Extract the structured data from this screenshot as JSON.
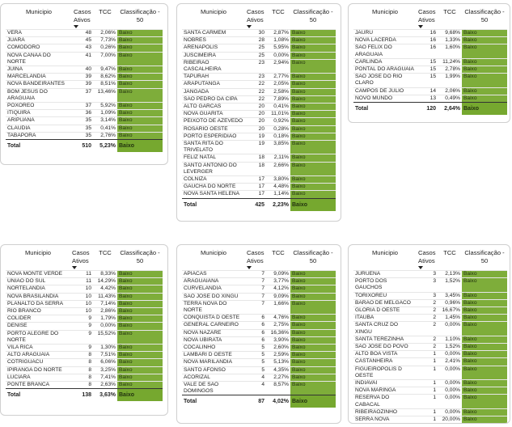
{
  "headers": {
    "municipio": "Municipio",
    "casos": "Casos Ativos",
    "tcc": "TCC",
    "classificacao": "Classificação - 50"
  },
  "colors": {
    "baixo": "#7ead3a",
    "total_baixo": "#76a82f",
    "header_rule": "#333333"
  },
  "tables": [
    {
      "rows": [
        {
          "m": "VERA",
          "c": "48",
          "t": "2,06%",
          "k": "Baixo"
        },
        {
          "m": "JUARA",
          "c": "45",
          "t": "7,73%",
          "k": "Baixo"
        },
        {
          "m": "COMODORO",
          "c": "43",
          "t": "0,26%",
          "k": "Baixo"
        },
        {
          "m": "NOVA CANAA DO NORTE",
          "c": "41",
          "t": "7,00%",
          "k": "Baixo"
        },
        {
          "m": "JUINA",
          "c": "40",
          "t": "9,47%",
          "k": "Baixo"
        },
        {
          "m": "MARCELANDIA",
          "c": "39",
          "t": "8,62%",
          "k": "Baixo"
        },
        {
          "m": "NOVA BANDEIRANTES",
          "c": "39",
          "t": "8,51%",
          "k": "Baixo"
        },
        {
          "m": "BOM JESUS DO ARAGUAIA",
          "c": "37",
          "t": "13,46%",
          "k": "Baixo"
        },
        {
          "m": "POXOREO",
          "c": "37",
          "t": "5,92%",
          "k": "Baixo"
        },
        {
          "m": "ITIQUIRA",
          "c": "36",
          "t": "1,09%",
          "k": "Baixo"
        },
        {
          "m": "ARIPUANA",
          "c": "35",
          "t": "3,14%",
          "k": "Baixo"
        },
        {
          "m": "CLAUDIA",
          "c": "35",
          "t": "0,41%",
          "k": "Baixo"
        },
        {
          "m": "TABAPORA",
          "c": "35",
          "t": "2,76%",
          "k": "Baixo"
        }
      ],
      "total": {
        "label": "Total",
        "c": "510",
        "t": "5,23%",
        "k": "Baixo"
      }
    },
    {
      "rows": [
        {
          "m": "SANTA CARMEM",
          "c": "30",
          "t": "2,87%",
          "k": "Baixo"
        },
        {
          "m": "NOBRES",
          "c": "28",
          "t": "1,08%",
          "k": "Baixo"
        },
        {
          "m": "ARENAPOLIS",
          "c": "25",
          "t": "5,95%",
          "k": "Baixo"
        },
        {
          "m": "JUSCIMEIRA",
          "c": "25",
          "t": "0,00%",
          "k": "Baixo"
        },
        {
          "m": "RIBEIRAO CASCALHEIRA",
          "c": "23",
          "t": "2,94%",
          "k": "Baixo"
        },
        {
          "m": "TAPURAH",
          "c": "23",
          "t": "2,77%",
          "k": "Baixo"
        },
        {
          "m": "ARAPUTANGA",
          "c": "22",
          "t": "2,05%",
          "k": "Baixo"
        },
        {
          "m": "JANGADA",
          "c": "22",
          "t": "2,58%",
          "k": "Baixo"
        },
        {
          "m": "SAO PEDRO DA CIPA",
          "c": "22",
          "t": "7,89%",
          "k": "Baixo"
        },
        {
          "m": "ALTO GARCAS",
          "c": "20",
          "t": "0,41%",
          "k": "Baixo"
        },
        {
          "m": "NOVA GUARITA",
          "c": "20",
          "t": "11,01%",
          "k": "Baixo"
        },
        {
          "m": "PEIXOTO DE AZEVEDO",
          "c": "20",
          "t": "0,92%",
          "k": "Baixo"
        },
        {
          "m": "ROSARIO OESTE",
          "c": "20",
          "t": "0,28%",
          "k": "Baixo"
        },
        {
          "m": "PORTO ESPERIDIAO",
          "c": "19",
          "t": "0,18%",
          "k": "Baixo"
        },
        {
          "m": "SANTA RITA DO TRIVELATO",
          "c": "19",
          "t": "3,85%",
          "k": "Baixo"
        },
        {
          "m": "FELIZ NATAL",
          "c": "18",
          "t": "2,11%",
          "k": "Baixo"
        },
        {
          "m": "SANTO ANTONIO DO LEVERGER",
          "c": "18",
          "t": "2,66%",
          "k": "Baixo"
        },
        {
          "m": "COLNIZA",
          "c": "17",
          "t": "3,80%",
          "k": "Baixo"
        },
        {
          "m": "GAUCHA DO NORTE",
          "c": "17",
          "t": "4,48%",
          "k": "Baixo"
        },
        {
          "m": "NOVA SANTA HELENA",
          "c": "17",
          "t": "1,14%",
          "k": "Baixo"
        }
      ],
      "total": {
        "label": "Total",
        "c": "425",
        "t": "2,23%",
        "k": "Baixo"
      }
    },
    {
      "rows": [
        {
          "m": "JAURU",
          "c": "16",
          "t": "9,68%",
          "k": "Baixo"
        },
        {
          "m": "NOVA LACERDA",
          "c": "16",
          "t": "1,33%",
          "k": "Baixo"
        },
        {
          "m": "SAO FELIX DO ARAGUAIA",
          "c": "16",
          "t": "1,60%",
          "k": "Baixo"
        },
        {
          "m": "CARLINDA",
          "c": "15",
          "t": "11,24%",
          "k": "Baixo"
        },
        {
          "m": "PONTAL DO ARAGUAIA",
          "c": "15",
          "t": "2,78%",
          "k": "Baixo"
        },
        {
          "m": "SAO JOSE DO RIO CLARO",
          "c": "15",
          "t": "1,99%",
          "k": "Baixo"
        },
        {
          "m": "CAMPOS DE JULIO",
          "c": "14",
          "t": "2,06%",
          "k": "Baixo"
        },
        {
          "m": "NOVO MUNDO",
          "c": "13",
          "t": "0,49%",
          "k": "Baixo"
        }
      ],
      "total": {
        "label": "Total",
        "c": "120",
        "t": "2,64%",
        "k": "Baixo"
      }
    },
    {
      "rows": [
        {
          "m": "NOVA MONTE VERDE",
          "c": "11",
          "t": "8,33%",
          "k": "Baixo"
        },
        {
          "m": "UNIAO DO SUL",
          "c": "11",
          "t": "14,29%",
          "k": "Baixo"
        },
        {
          "m": "NORTELANDIA",
          "c": "10",
          "t": "4,42%",
          "k": "Baixo"
        },
        {
          "m": "NOVA BRASILANDIA",
          "c": "10",
          "t": "11,43%",
          "k": "Baixo"
        },
        {
          "m": "PLANALTO DA SERRA",
          "c": "10",
          "t": "7,14%",
          "k": "Baixo"
        },
        {
          "m": "RIO BRANCO",
          "c": "10",
          "t": "2,86%",
          "k": "Baixo"
        },
        {
          "m": "COLIDER",
          "c": "9",
          "t": "1,79%",
          "k": "Baixo"
        },
        {
          "m": "DENISE",
          "c": "9",
          "t": "0,00%",
          "k": "Baixo"
        },
        {
          "m": "PORTO ALEGRE DO NORTE",
          "c": "9",
          "t": "15,52%",
          "k": "Baixo"
        },
        {
          "m": "VILA RICA",
          "c": "9",
          "t": "1,30%",
          "k": "Baixo"
        },
        {
          "m": "ALTO ARAGUAIA",
          "c": "8",
          "t": "7,51%",
          "k": "Baixo"
        },
        {
          "m": "COTRIGUACU",
          "c": "8",
          "t": "6,06%",
          "k": "Baixo"
        },
        {
          "m": "IPIRANGA DO NORTE",
          "c": "8",
          "t": "3,25%",
          "k": "Baixo"
        },
        {
          "m": "LUCIARA",
          "c": "8",
          "t": "7,41%",
          "k": "Baixo"
        },
        {
          "m": "PONTE BRANCA",
          "c": "8",
          "t": "2,63%",
          "k": "Baixo"
        }
      ],
      "total": {
        "label": "Total",
        "c": "138",
        "t": "3,63%",
        "k": "Baixo"
      }
    },
    {
      "rows": [
        {
          "m": "APIACAS",
          "c": "7",
          "t": "9,09%",
          "k": "Baixo"
        },
        {
          "m": "ARAGUAIANA",
          "c": "7",
          "t": "3,77%",
          "k": "Baixo"
        },
        {
          "m": "CURVELANDIA",
          "c": "7",
          "t": "4,12%",
          "k": "Baixo"
        },
        {
          "m": "SAO JOSE DO XINGU",
          "c": "7",
          "t": "9,09%",
          "k": "Baixo"
        },
        {
          "m": "TERRA NOVA DO NORTE",
          "c": "7",
          "t": "1,66%",
          "k": "Baixo"
        },
        {
          "m": "CONQUISTA D OESTE",
          "c": "6",
          "t": "4,76%",
          "k": "Baixo"
        },
        {
          "m": "GENERAL CARNEIRO",
          "c": "6",
          "t": "2,75%",
          "k": "Baixo"
        },
        {
          "m": "NOVA NAZARE",
          "c": "6",
          "t": "16,36%",
          "k": "Baixo"
        },
        {
          "m": "NOVA UBIRATA",
          "c": "6",
          "t": "3,90%",
          "k": "Baixo"
        },
        {
          "m": "COCALINHO",
          "c": "5",
          "t": "2,60%",
          "k": "Baixo"
        },
        {
          "m": "LAMBARI D OESTE",
          "c": "5",
          "t": "2,59%",
          "k": "Baixo"
        },
        {
          "m": "NOVA MARILANDIA",
          "c": "5",
          "t": "5,13%",
          "k": "Baixo"
        },
        {
          "m": "SANTO AFONSO",
          "c": "5",
          "t": "4,35%",
          "k": "Baixo"
        },
        {
          "m": "ACORIZAL",
          "c": "4",
          "t": "2,27%",
          "k": "Baixo"
        },
        {
          "m": "VALE DE SAO DOMINGOS",
          "c": "4",
          "t": "8,57%",
          "k": "Baixo"
        }
      ],
      "total": {
        "label": "Total",
        "c": "87",
        "t": "4,02%",
        "k": "Baixo"
      }
    },
    {
      "rows": [
        {
          "m": "JURUENA",
          "c": "3",
          "t": "2,13%",
          "k": "Baixo"
        },
        {
          "m": "PORTO DOS GAUCHOS",
          "c": "3",
          "t": "1,52%",
          "k": "Baixo"
        },
        {
          "m": "TORIXOREU",
          "c": "3",
          "t": "3,45%",
          "k": "Baixo"
        },
        {
          "m": "BARAO DE MELGACO",
          "c": "2",
          "t": "0,96%",
          "k": "Baixo"
        },
        {
          "m": "GLORIA D OESTE",
          "c": "2",
          "t": "16,67%",
          "k": "Baixo"
        },
        {
          "m": "ITAUBA",
          "c": "2",
          "t": "1,45%",
          "k": "Baixo"
        },
        {
          "m": "SANTA CRUZ DO XINGU",
          "c": "2",
          "t": "0,00%",
          "k": "Baixo"
        },
        {
          "m": "SANTA TEREZINHA",
          "c": "2",
          "t": "1,10%",
          "k": "Baixo"
        },
        {
          "m": "SAO JOSE DO POVO",
          "c": "2",
          "t": "1,52%",
          "k": "Baixo"
        },
        {
          "m": "ALTO BOA VISTA",
          "c": "1",
          "t": "0,00%",
          "k": "Baixo"
        },
        {
          "m": "CASTANHEIRA",
          "c": "1",
          "t": "2,41%",
          "k": "Baixo"
        },
        {
          "m": "FIGUEIROPOLIS D OESTE",
          "c": "1",
          "t": "0,00%",
          "k": "Baixo"
        },
        {
          "m": "INDIAVAI",
          "c": "1",
          "t": "0,00%",
          "k": "Baixo"
        },
        {
          "m": "NOVA MARINGA",
          "c": "1",
          "t": "0,00%",
          "k": "Baixo"
        },
        {
          "m": "RESERVA DO CABACAL",
          "c": "1",
          "t": "0,00%",
          "k": "Baixo"
        },
        {
          "m": "RIBEIRAOZINHO",
          "c": "1",
          "t": "0,00%",
          "k": "Baixo"
        },
        {
          "m": "SERRA NOVA DOURADA",
          "c": "1",
          "t": "20,00%",
          "k": "Baixo"
        }
      ],
      "total": {
        "label": "Total",
        "c": "29",
        "t": "1,65%",
        "k": "Baixo"
      }
    }
  ]
}
